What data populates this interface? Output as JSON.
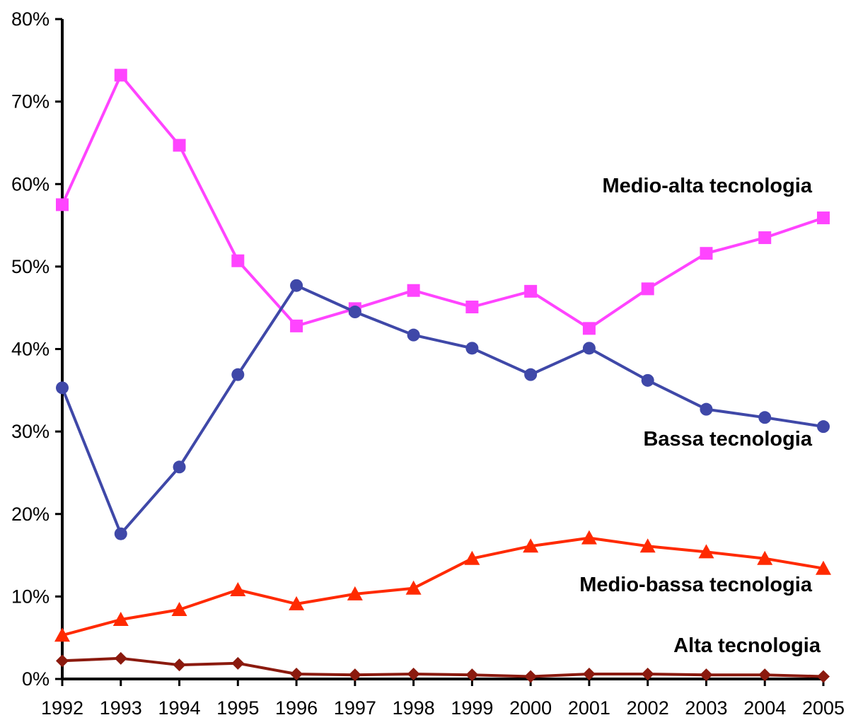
{
  "chart_data": {
    "type": "line",
    "title": "",
    "xlabel": "",
    "ylabel": "",
    "x": [
      "1992",
      "1993",
      "1994",
      "1995",
      "1996",
      "1997",
      "1998",
      "1999",
      "2000",
      "2001",
      "2002",
      "2003",
      "2004",
      "2005"
    ],
    "ylim": [
      0,
      80
    ],
    "y_ticks": [
      "0%",
      "10%",
      "20%",
      "30%",
      "40%",
      "50%",
      "60%",
      "70%",
      "80%"
    ],
    "grid": false,
    "series": [
      {
        "name": "Medio-alta tecnologia",
        "color": "#ff44ff",
        "marker": "square",
        "values": [
          57.5,
          73.2,
          64.7,
          50.7,
          42.8,
          44.9,
          47.1,
          45.1,
          47.0,
          42.5,
          47.3,
          51.6,
          53.5,
          55.9
        ]
      },
      {
        "name": "Bassa tecnologia",
        "color": "#3f48a8",
        "marker": "circle",
        "values": [
          35.3,
          17.6,
          25.7,
          36.9,
          47.7,
          44.5,
          41.7,
          40.1,
          36.9,
          40.1,
          36.2,
          32.7,
          31.7,
          30.6
        ]
      },
      {
        "name": "Medio-bassa tecnologia",
        "color": "#ff2a00",
        "marker": "triangle",
        "values": [
          5.3,
          7.2,
          8.4,
          10.8,
          9.1,
          10.3,
          11.0,
          14.6,
          16.1,
          17.1,
          16.1,
          15.4,
          14.6,
          13.4
        ]
      },
      {
        "name": "Alta tecnologia",
        "color": "#8b1a0e",
        "marker": "diamond",
        "values": [
          2.2,
          2.5,
          1.7,
          1.9,
          0.6,
          0.5,
          0.6,
          0.5,
          0.3,
          0.6,
          0.6,
          0.5,
          0.5,
          0.3
        ]
      }
    ]
  }
}
